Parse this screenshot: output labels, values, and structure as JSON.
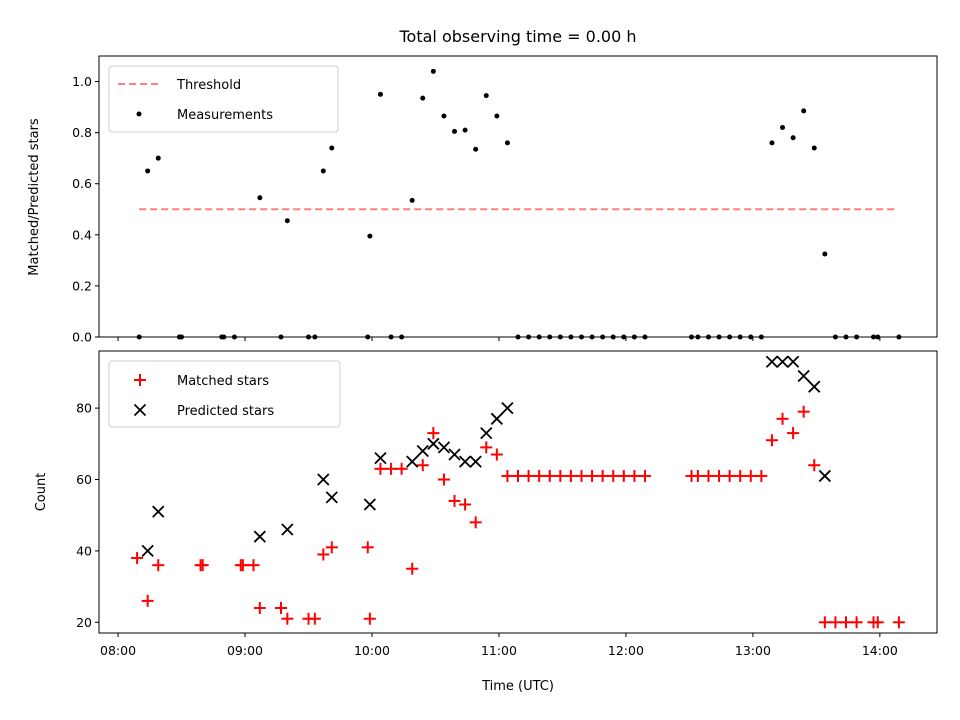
{
  "figure": {
    "title": "Total observing time = 0.00 h"
  },
  "chart_data": [
    {
      "type": "scatter",
      "ylabel": "Matched/Predicted stars",
      "xlabel": "",
      "xlim": [
        "07:51",
        "14:27"
      ],
      "ylim": [
        0,
        1.1
      ],
      "yticks": [
        0.0,
        0.2,
        0.4,
        0.6,
        0.8,
        1.0
      ],
      "ytick_labels": [
        "0.0",
        "0.2",
        "0.4",
        "0.6",
        "0.8",
        "1.0"
      ],
      "xticks": [
        "08:00",
        "09:00",
        "10:00",
        "11:00",
        "12:00",
        "13:00",
        "14:00"
      ],
      "grid": false,
      "legend_position": "top-left",
      "threshold": {
        "name": "Threshold",
        "value": 0.5,
        "x_start": "08:10",
        "x_end": "14:07",
        "color": "#ff7f7f",
        "style": "dashed"
      },
      "series": [
        {
          "name": "Measurements",
          "color": "#000000",
          "marker": "dot",
          "points": [
            [
              "08:10",
              0.0
            ],
            [
              "08:14",
              0.65
            ],
            [
              "08:19",
              0.7
            ],
            [
              "08:29",
              0.0
            ],
            [
              "08:30",
              0.0
            ],
            [
              "08:49",
              0.0
            ],
            [
              "08:50",
              0.0
            ],
            [
              "08:55",
              0.0
            ],
            [
              "09:07",
              0.545
            ],
            [
              "09:17",
              0.0
            ],
            [
              "09:20",
              0.455
            ],
            [
              "09:30",
              0.0
            ],
            [
              "09:33",
              0.0
            ],
            [
              "09:37",
              0.65
            ],
            [
              "09:41",
              0.74
            ],
            [
              "09:58",
              0.0
            ],
            [
              "09:59",
              0.395
            ],
            [
              "10:04",
              0.95
            ],
            [
              "10:09",
              0.0
            ],
            [
              "10:14",
              0.0
            ],
            [
              "10:19",
              0.535
            ],
            [
              "10:24",
              0.935
            ],
            [
              "10:29",
              1.04
            ],
            [
              "10:34",
              0.865
            ],
            [
              "10:39",
              0.805
            ],
            [
              "10:44",
              0.81
            ],
            [
              "10:49",
              0.735
            ],
            [
              "10:54",
              0.945
            ],
            [
              "10:59",
              0.865
            ],
            [
              "11:04",
              0.76
            ],
            [
              "11:09",
              0.0
            ],
            [
              "11:14",
              0.0
            ],
            [
              "11:19",
              0.0
            ],
            [
              "11:24",
              0.0
            ],
            [
              "11:29",
              0.0
            ],
            [
              "11:34",
              0.0
            ],
            [
              "11:39",
              0.0
            ],
            [
              "11:44",
              0.0
            ],
            [
              "11:49",
              0.0
            ],
            [
              "11:54",
              0.0
            ],
            [
              "11:59",
              0.0
            ],
            [
              "12:04",
              0.0
            ],
            [
              "12:09",
              0.0
            ],
            [
              "12:31",
              0.0
            ],
            [
              "12:34",
              0.0
            ],
            [
              "12:39",
              0.0
            ],
            [
              "12:44",
              0.0
            ],
            [
              "12:49",
              0.0
            ],
            [
              "12:54",
              0.0
            ],
            [
              "12:59",
              0.0
            ],
            [
              "13:04",
              0.0
            ],
            [
              "13:09",
              0.76
            ],
            [
              "13:14",
              0.82
            ],
            [
              "13:19",
              0.78
            ],
            [
              "13:24",
              0.885
            ],
            [
              "13:29",
              0.74
            ],
            [
              "13:34",
              0.325
            ],
            [
              "13:39",
              0.0
            ],
            [
              "13:44",
              0.0
            ],
            [
              "13:49",
              0.0
            ],
            [
              "13:57",
              0.0
            ],
            [
              "13:59",
              0.0
            ],
            [
              "14:09",
              0.0
            ]
          ]
        }
      ]
    },
    {
      "type": "scatter",
      "ylabel": "Count",
      "xlabel": "Time (UTC)",
      "xlim": [
        "07:51",
        "14:27"
      ],
      "ylim": [
        17,
        96
      ],
      "yticks": [
        20,
        40,
        60,
        80
      ],
      "ytick_labels": [
        "20",
        "40",
        "60",
        "80"
      ],
      "xticks": [
        "08:00",
        "09:00",
        "10:00",
        "11:00",
        "12:00",
        "13:00",
        "14:00"
      ],
      "xtick_labels": [
        "08:00",
        "09:00",
        "10:00",
        "11:00",
        "12:00",
        "13:00",
        "14:00"
      ],
      "grid": false,
      "legend_position": "top-left",
      "series": [
        {
          "name": "Matched stars",
          "color": "#ff0000",
          "marker": "plus",
          "points": [
            [
              "08:09",
              38
            ],
            [
              "08:14",
              26
            ],
            [
              "08:19",
              36
            ],
            [
              "08:39",
              36
            ],
            [
              "08:40",
              36
            ],
            [
              "08:58",
              36
            ],
            [
              "08:59",
              36
            ],
            [
              "09:04",
              36
            ],
            [
              "09:07",
              24
            ],
            [
              "09:17",
              24
            ],
            [
              "09:20",
              21
            ],
            [
              "09:30",
              21
            ],
            [
              "09:33",
              21
            ],
            [
              "09:37",
              39
            ],
            [
              "09:41",
              41
            ],
            [
              "09:58",
              41
            ],
            [
              "09:59",
              21
            ],
            [
              "10:04",
              63
            ],
            [
              "10:09",
              63
            ],
            [
              "10:14",
              63
            ],
            [
              "10:19",
              35
            ],
            [
              "10:24",
              64
            ],
            [
              "10:29",
              73
            ],
            [
              "10:34",
              60
            ],
            [
              "10:39",
              54
            ],
            [
              "10:44",
              53
            ],
            [
              "10:49",
              48
            ],
            [
              "10:54",
              69
            ],
            [
              "10:59",
              67
            ],
            [
              "11:04",
              61
            ],
            [
              "11:09",
              61
            ],
            [
              "11:14",
              61
            ],
            [
              "11:19",
              61
            ],
            [
              "11:24",
              61
            ],
            [
              "11:29",
              61
            ],
            [
              "11:34",
              61
            ],
            [
              "11:39",
              61
            ],
            [
              "11:44",
              61
            ],
            [
              "11:49",
              61
            ],
            [
              "11:54",
              61
            ],
            [
              "11:59",
              61
            ],
            [
              "12:04",
              61
            ],
            [
              "12:09",
              61
            ],
            [
              "12:31",
              61
            ],
            [
              "12:34",
              61
            ],
            [
              "12:39",
              61
            ],
            [
              "12:44",
              61
            ],
            [
              "12:49",
              61
            ],
            [
              "12:54",
              61
            ],
            [
              "12:59",
              61
            ],
            [
              "13:04",
              61
            ],
            [
              "13:09",
              71
            ],
            [
              "13:14",
              77
            ],
            [
              "13:19",
              73
            ],
            [
              "13:24",
              79
            ],
            [
              "13:29",
              64
            ],
            [
              "13:34",
              20
            ],
            [
              "13:39",
              20
            ],
            [
              "13:44",
              20
            ],
            [
              "13:49",
              20
            ],
            [
              "13:57",
              20
            ],
            [
              "13:59",
              20
            ],
            [
              "14:09",
              20
            ]
          ]
        },
        {
          "name": "Predicted stars",
          "color": "#000000",
          "marker": "x",
          "points": [
            [
              "08:14",
              40
            ],
            [
              "08:19",
              51
            ],
            [
              "09:07",
              44
            ],
            [
              "09:20",
              46
            ],
            [
              "09:37",
              60
            ],
            [
              "09:41",
              55
            ],
            [
              "09:59",
              53
            ],
            [
              "10:04",
              66
            ],
            [
              "10:19",
              65
            ],
            [
              "10:24",
              68
            ],
            [
              "10:29",
              70
            ],
            [
              "10:34",
              69
            ],
            [
              "10:39",
              67
            ],
            [
              "10:44",
              65
            ],
            [
              "10:49",
              65
            ],
            [
              "10:54",
              73
            ],
            [
              "10:59",
              77
            ],
            [
              "11:04",
              80
            ],
            [
              "13:09",
              93
            ],
            [
              "13:14",
              93
            ],
            [
              "13:19",
              93
            ],
            [
              "13:24",
              89
            ],
            [
              "13:29",
              86
            ],
            [
              "13:34",
              61
            ]
          ]
        }
      ]
    }
  ]
}
